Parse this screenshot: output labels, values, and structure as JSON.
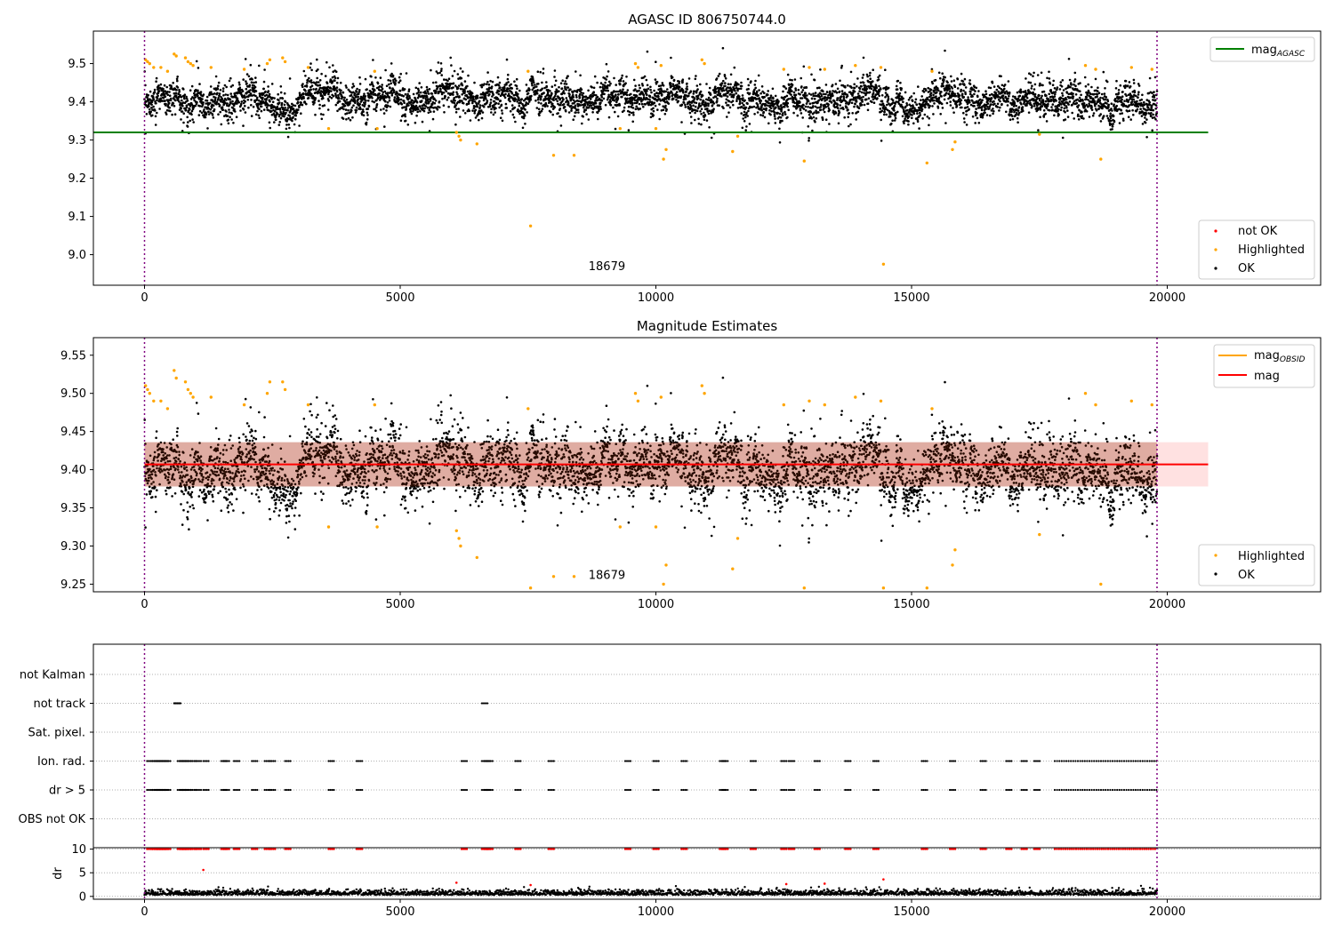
{
  "figure": {
    "top_title": "AGASC ID 806750744.0",
    "middle_title": "Magnitude Estimates",
    "obsid_label": "18679"
  },
  "colors": {
    "ok": "#000000",
    "highlighted": "#ffa500",
    "not_ok": "#ff0000",
    "agasc_line": "#008000",
    "mag_line": "#ff0000",
    "mag_band": "#ffc8c8",
    "obsid_line": "#ffa500",
    "boundary": "#800080"
  },
  "chart_data": [
    {
      "type": "scatter",
      "title": "AGASC ID 806750744.0",
      "xlim": [
        -1000,
        23000
      ],
      "ylim": [
        8.92,
        9.585
      ],
      "xticks": [
        "0",
        "5000",
        "10000",
        "15000",
        "20000"
      ],
      "xtick_values": [
        0,
        5000,
        10000,
        15000,
        20000
      ],
      "yticks": [
        "9.0",
        "9.1",
        "9.2",
        "9.3",
        "9.4",
        "9.5"
      ],
      "ytick_values": [
        9.0,
        9.1,
        9.2,
        9.3,
        9.4,
        9.5
      ],
      "obsid_boundaries": [
        0,
        19800
      ],
      "obsid_annotation": {
        "text": "18679",
        "x": 9900,
        "y": 8.95
      },
      "ok_band": {
        "x_start": 0,
        "x_end": 19800,
        "y_center": 9.41,
        "y_spread": 0.035
      },
      "mag_agasc": {
        "label": "mag",
        "subscript": "AGASC",
        "value": 9.32,
        "x_start": -1000,
        "x_end": 20800
      },
      "highlighted_points": [
        [
          20,
          9.51
        ],
        [
          60,
          9.505
        ],
        [
          100,
          9.5
        ],
        [
          180,
          9.49
        ],
        [
          320,
          9.49
        ],
        [
          450,
          9.48
        ],
        [
          580,
          9.525
        ],
        [
          620,
          9.52
        ],
        [
          800,
          9.515
        ],
        [
          850,
          9.505
        ],
        [
          900,
          9.5
        ],
        [
          950,
          9.495
        ],
        [
          1300,
          9.49
        ],
        [
          1950,
          9.485
        ],
        [
          2400,
          9.5
        ],
        [
          2450,
          9.51
        ],
        [
          2700,
          9.515
        ],
        [
          2750,
          9.505
        ],
        [
          3200,
          9.49
        ],
        [
          3600,
          9.33
        ],
        [
          4500,
          9.48
        ],
        [
          4550,
          9.33
        ],
        [
          6100,
          9.32
        ],
        [
          6150,
          9.31
        ],
        [
          6180,
          9.3
        ],
        [
          6500,
          9.29
        ],
        [
          7500,
          9.48
        ],
        [
          7550,
          9.075
        ],
        [
          8000,
          9.26
        ],
        [
          8400,
          9.26
        ],
        [
          9300,
          9.33
        ],
        [
          9600,
          9.5
        ],
        [
          9650,
          9.49
        ],
        [
          10000,
          9.33
        ],
        [
          10100,
          9.495
        ],
        [
          10150,
          9.25
        ],
        [
          10200,
          9.275
        ],
        [
          10900,
          9.51
        ],
        [
          10950,
          9.5
        ],
        [
          11500,
          9.27
        ],
        [
          11600,
          9.31
        ],
        [
          12500,
          9.485
        ],
        [
          12900,
          9.245
        ],
        [
          13000,
          9.49
        ],
        [
          13300,
          9.485
        ],
        [
          13900,
          9.495
        ],
        [
          14400,
          9.49
        ],
        [
          14450,
          8.975
        ],
        [
          15300,
          9.24
        ],
        [
          15400,
          9.48
        ],
        [
          15800,
          9.275
        ],
        [
          15850,
          9.295
        ],
        [
          17500,
          9.315
        ],
        [
          18400,
          9.495
        ],
        [
          18600,
          9.485
        ],
        [
          18700,
          9.25
        ],
        [
          19300,
          9.49
        ],
        [
          19700,
          9.485
        ]
      ],
      "not_ok_points": [],
      "legend_lines": {
        "items": [
          {
            "label": "mag",
            "subscript": "AGASC"
          }
        ],
        "placement": "upper right"
      },
      "legend_points": {
        "items": [
          "not OK",
          "Highlighted",
          "OK"
        ],
        "placement": "lower right"
      }
    },
    {
      "type": "scatter",
      "title": "Magnitude Estimates",
      "xlim": [
        -1000,
        23000
      ],
      "ylim": [
        9.24,
        9.573
      ],
      "xticks": [
        "0",
        "5000",
        "10000",
        "15000",
        "20000"
      ],
      "xtick_values": [
        0,
        5000,
        10000,
        15000,
        20000
      ],
      "yticks": [
        "9.25",
        "9.30",
        "9.35",
        "9.40",
        "9.45",
        "9.50",
        "9.55"
      ],
      "ytick_values": [
        9.25,
        9.3,
        9.35,
        9.4,
        9.45,
        9.5,
        9.55
      ],
      "obsid_boundaries": [
        0,
        19800
      ],
      "obsid_annotation": {
        "text": "18679",
        "x": 9900,
        "y": 9.252
      },
      "ok_band": {
        "x_start": 0,
        "x_end": 19800,
        "y_center": 9.405,
        "y_spread": 0.03
      },
      "mag": {
        "label": "mag",
        "value": 9.407,
        "band_low": 9.378,
        "band_high": 9.436,
        "x_start": -1000,
        "x_end": 20800
      },
      "mag_obsid": {
        "label": "mag",
        "subscript": "OBSID",
        "value": 9.407
      },
      "highlighted_points": [
        [
          20,
          9.51
        ],
        [
          60,
          9.505
        ],
        [
          100,
          9.5
        ],
        [
          180,
          9.49
        ],
        [
          320,
          9.49
        ],
        [
          450,
          9.48
        ],
        [
          580,
          9.53
        ],
        [
          620,
          9.52
        ],
        [
          800,
          9.515
        ],
        [
          850,
          9.505
        ],
        [
          900,
          9.5
        ],
        [
          950,
          9.495
        ],
        [
          1300,
          9.495
        ],
        [
          1950,
          9.485
        ],
        [
          2400,
          9.5
        ],
        [
          2450,
          9.515
        ],
        [
          2700,
          9.515
        ],
        [
          2750,
          9.505
        ],
        [
          3200,
          9.485
        ],
        [
          3600,
          9.325
        ],
        [
          4500,
          9.485
        ],
        [
          4550,
          9.325
        ],
        [
          6100,
          9.32
        ],
        [
          6150,
          9.31
        ],
        [
          6180,
          9.3
        ],
        [
          6500,
          9.285
        ],
        [
          7500,
          9.48
        ],
        [
          7550,
          9.245
        ],
        [
          8000,
          9.26
        ],
        [
          8400,
          9.26
        ],
        [
          9300,
          9.325
        ],
        [
          9600,
          9.5
        ],
        [
          9650,
          9.49
        ],
        [
          10000,
          9.325
        ],
        [
          10100,
          9.495
        ],
        [
          10150,
          9.25
        ],
        [
          10200,
          9.275
        ],
        [
          10900,
          9.51
        ],
        [
          10950,
          9.5
        ],
        [
          11500,
          9.27
        ],
        [
          11600,
          9.31
        ],
        [
          12500,
          9.485
        ],
        [
          12900,
          9.245
        ],
        [
          13000,
          9.49
        ],
        [
          13300,
          9.485
        ],
        [
          13900,
          9.495
        ],
        [
          14400,
          9.49
        ],
        [
          14450,
          9.245
        ],
        [
          15300,
          9.245
        ],
        [
          15400,
          9.48
        ],
        [
          15800,
          9.275
        ],
        [
          15850,
          9.295
        ],
        [
          17500,
          9.315
        ],
        [
          18400,
          9.5
        ],
        [
          18600,
          9.485
        ],
        [
          18700,
          9.25
        ],
        [
          19300,
          9.49
        ],
        [
          19700,
          9.485
        ]
      ],
      "legend_lines": {
        "items": [
          {
            "label": "mag",
            "subscript": "OBSID"
          },
          {
            "label": "mag",
            "subscript": ""
          }
        ],
        "placement": "upper right"
      },
      "legend_points": {
        "items": [
          "Highlighted",
          "OK"
        ],
        "placement": "lower right"
      }
    },
    {
      "type": "scatter",
      "title": "",
      "xlim": [
        -1000,
        23000
      ],
      "flag_rows": [
        "not Kalman",
        "not track",
        "Sat. pixel.",
        "Ion. rad.",
        "dr > 5",
        "OBS not OK"
      ],
      "obsid_boundaries": [
        0,
        19800
      ],
      "flag_events": {
        "not track": [
          580,
          600,
          6600
        ],
        "Ion. rad.": [
          50,
          150,
          200,
          250,
          300,
          350,
          400,
          650,
          700,
          750,
          800,
          900,
          1000,
          1150,
          1500,
          1550,
          1750,
          2100,
          2350,
          2450,
          2750,
          3600,
          4150,
          6200,
          6600,
          6650,
          6700,
          7250,
          7900,
          9400,
          9950,
          10500,
          11250,
          11300,
          11850,
          12450,
          12600,
          13100,
          13700,
          14250,
          15200,
          15750,
          16350,
          16850,
          17150,
          17400
        ],
        "dr > 5": [
          50,
          150,
          200,
          250,
          300,
          350,
          400,
          650,
          700,
          750,
          800,
          900,
          1000,
          1150,
          1500,
          1550,
          1750,
          2100,
          2350,
          2450,
          2750,
          3600,
          4150,
          6200,
          6600,
          6650,
          6700,
          7250,
          7900,
          9400,
          9950,
          10500,
          11250,
          11300,
          11850,
          12450,
          12600,
          13100,
          13700,
          14250,
          15200,
          15750,
          16350,
          16850,
          17150,
          17400
        ],
        "dense_range": [
          17800,
          19800
        ]
      },
      "dr_panel": {
        "ylabel": "dr",
        "ylim": [
          -0.6,
          10.3
        ],
        "yticks": [
          "0",
          "5",
          "10"
        ],
        "ytick_values": [
          0,
          5,
          10
        ],
        "clipped_value": 10,
        "outliers": [
          [
            1150,
            5.6
          ],
          [
            6100,
            2.9
          ],
          [
            7550,
            2.4
          ],
          [
            12550,
            2.6
          ],
          [
            13300,
            2.7
          ],
          [
            14450,
            3.6
          ]
        ]
      },
      "xticks": [
        "0",
        "5000",
        "10000",
        "15000",
        "20000"
      ],
      "xtick_values": [
        0,
        5000,
        10000,
        15000,
        20000
      ]
    }
  ]
}
